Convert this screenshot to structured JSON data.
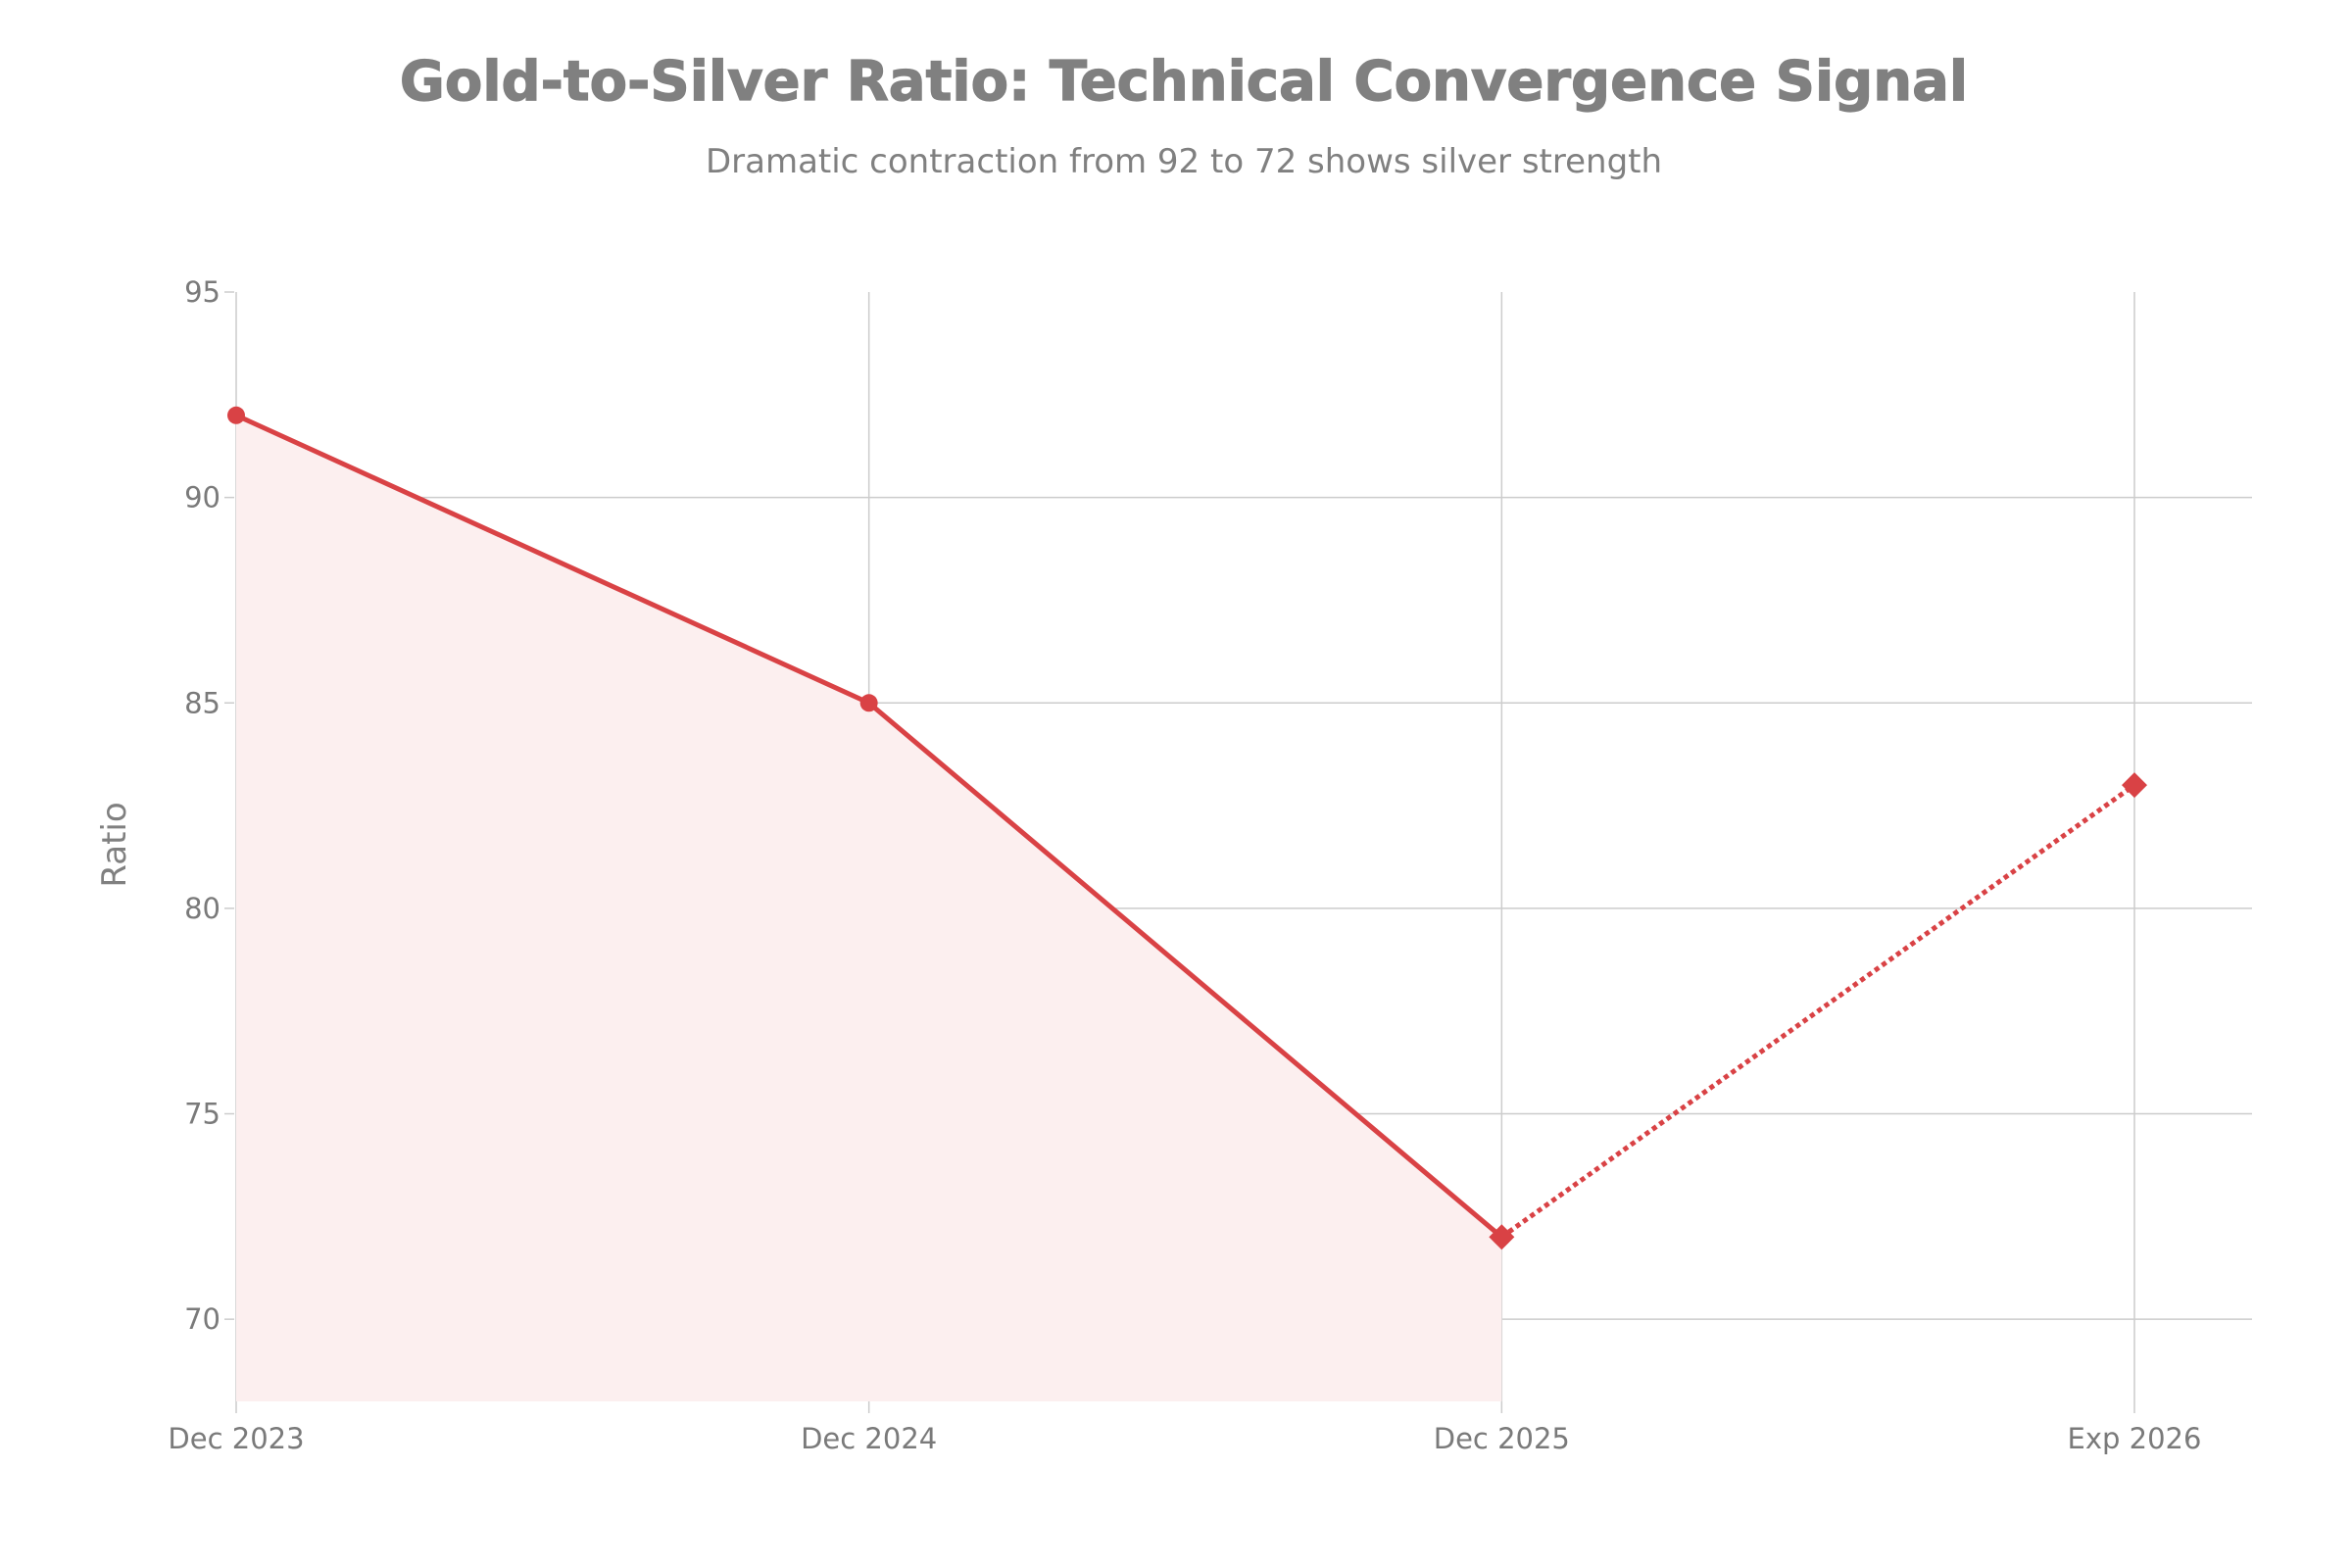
{
  "chart_data": {
    "type": "line",
    "title": "Gold-to-Silver Ratio: Technical Convergence Signal",
    "subtitle": "Dramatic contraction from 92 to 72 shows silver strength",
    "xlabel": "",
    "ylabel": "Ratio",
    "categories": [
      "Dec 2023",
      "Dec 2024",
      "Dec 2025",
      "Exp 2026"
    ],
    "series": [
      {
        "values": [
          92,
          85,
          72,
          null
        ],
        "style": "solid",
        "marker": "circle",
        "fill": "area"
      },
      {
        "values": [
          null,
          null,
          72,
          83
        ],
        "style": "dotted",
        "marker": "diamond"
      }
    ],
    "ylim": [
      68,
      95
    ],
    "yticks": [
      70,
      75,
      80,
      85,
      90,
      95
    ],
    "grid": true,
    "colors": {
      "line": "#d94245",
      "fill": "#fcefef",
      "grid": "#cccccc",
      "text": "#808080"
    }
  }
}
